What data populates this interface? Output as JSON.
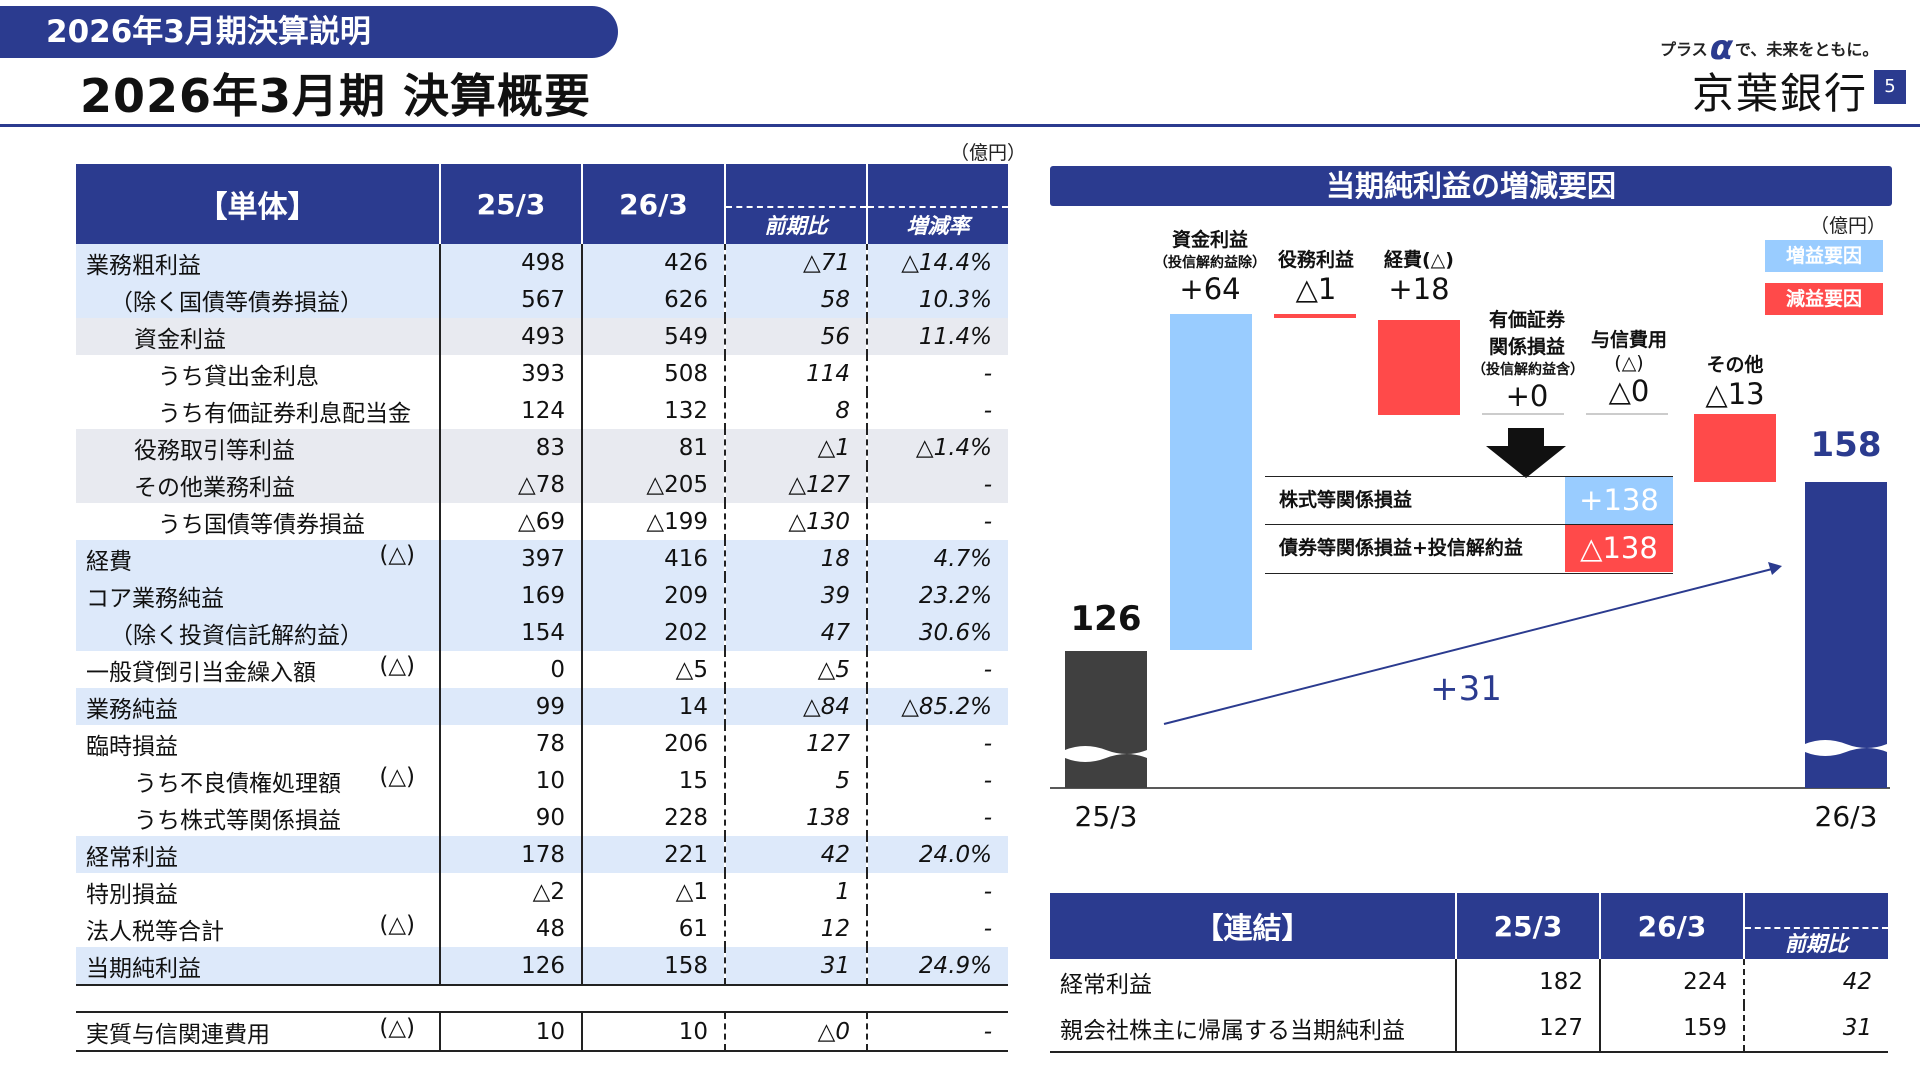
{
  "header": {
    "section_label": "2026年3月期決算説明",
    "page_title": "2026年3月期 決算概要",
    "slogan_pre": "プラス",
    "slogan_post": "で、未来をともに。",
    "bank_name": "京葉銀行",
    "page_number": "5"
  },
  "unit_label": "（億円）",
  "main_table": {
    "headers": {
      "label": "【単体】",
      "col1": "25/3",
      "col2": "26/3",
      "col3": "前期比",
      "col4": "増減率"
    },
    "rows": [
      {
        "label": "業務粗利益",
        "suffix": "",
        "v25": "498",
        "v26": "426",
        "diff": "△71",
        "rate": "△14.4%"
      },
      {
        "label": "（除く国債等債券損益）",
        "suffix": "",
        "v25": "567",
        "v26": "626",
        "diff": "58",
        "rate": "10.3%"
      },
      {
        "label": "資金利益",
        "suffix": "",
        "v25": "493",
        "v26": "549",
        "diff": "56",
        "rate": "11.4%"
      },
      {
        "label": "うち貸出金利息",
        "suffix": "",
        "v25": "393",
        "v26": "508",
        "diff": "114",
        "rate": "-"
      },
      {
        "label": "うち有価証券利息配当金",
        "suffix": "",
        "v25": "124",
        "v26": "132",
        "diff": "8",
        "rate": "-"
      },
      {
        "label": "役務取引等利益",
        "suffix": "",
        "v25": "83",
        "v26": "81",
        "diff": "△1",
        "rate": "△1.4%"
      },
      {
        "label": "その他業務利益",
        "suffix": "",
        "v25": "△78",
        "v26": "△205",
        "diff": "△127",
        "rate": "-"
      },
      {
        "label": "うち国債等債券損益",
        "suffix": "",
        "v25": "△69",
        "v26": "△199",
        "diff": "△130",
        "rate": "-"
      },
      {
        "label": "経費",
        "suffix": "(△)",
        "v25": "397",
        "v26": "416",
        "diff": "18",
        "rate": "4.7%"
      },
      {
        "label": "コア業務純益",
        "suffix": "",
        "v25": "169",
        "v26": "209",
        "diff": "39",
        "rate": "23.2%"
      },
      {
        "label": "（除く投資信託解約益）",
        "suffix": "",
        "v25": "154",
        "v26": "202",
        "diff": "47",
        "rate": "30.6%"
      },
      {
        "label": "一般貸倒引当金繰入額",
        "suffix": "(△)",
        "v25": "0",
        "v26": "△5",
        "diff": "△5",
        "rate": "-"
      },
      {
        "label": "業務純益",
        "suffix": "",
        "v25": "99",
        "v26": "14",
        "diff": "△84",
        "rate": "△85.2%"
      },
      {
        "label": "臨時損益",
        "suffix": "",
        "v25": "78",
        "v26": "206",
        "diff": "127",
        "rate": "-"
      },
      {
        "label": "うち不良債権処理額",
        "suffix": "(△)",
        "v25": "10",
        "v26": "15",
        "diff": "5",
        "rate": "-"
      },
      {
        "label": "うち株式等関係損益",
        "suffix": "",
        "v25": "90",
        "v26": "228",
        "diff": "138",
        "rate": "-"
      },
      {
        "label": "経常利益",
        "suffix": "",
        "v25": "178",
        "v26": "221",
        "diff": "42",
        "rate": "24.0%"
      },
      {
        "label": "特別損益",
        "suffix": "",
        "v25": "△2",
        "v26": "△1",
        "diff": "1",
        "rate": "-"
      },
      {
        "label": "法人税等合計",
        "suffix": "(△)",
        "v25": "48",
        "v26": "61",
        "diff": "12",
        "rate": "-"
      },
      {
        "label": "当期純利益",
        "suffix": "",
        "v25": "126",
        "v26": "158",
        "diff": "31",
        "rate": "24.9%"
      }
    ],
    "extra_row": {
      "label": "実質与信関連費用",
      "suffix": "(△)",
      "v25": "10",
      "v26": "10",
      "diff": "△0",
      "rate": "-"
    }
  },
  "chart": {
    "title": "当期純利益の増減要因",
    "unit": "（億円）",
    "legend_increase": "増益要因",
    "legend_decrease": "減益要因",
    "colors": {
      "increase": "#99ccff",
      "decrease": "#ff4a4a",
      "start": "#404040",
      "end": "#2b3b8f",
      "brand": "#2b3b8f"
    },
    "start": {
      "label": "25/3",
      "value": "126"
    },
    "end": {
      "label": "26/3",
      "value": "158"
    },
    "factors": [
      {
        "name": "資金利益",
        "note": "（投信解約益除）",
        "value_text": "+64",
        "type": "increase"
      },
      {
        "name": "役務利益",
        "note": "",
        "value_text": "△1",
        "type": "decrease"
      },
      {
        "name": "経費(△)",
        "note": "",
        "value_text": "+18",
        "type": "decrease"
      },
      {
        "name_lines": [
          "有価証券",
          "関係損益"
        ],
        "note": "（投信解約益含）",
        "value_text": "+0",
        "type": "none"
      },
      {
        "name_lines": [
          "与信費用",
          "(△)"
        ],
        "note": "",
        "value_text": "△0",
        "type": "none"
      },
      {
        "name": "その他",
        "note": "",
        "value_text": "△13",
        "type": "decrease"
      }
    ],
    "breakdown": [
      {
        "label": "株式等関係損益",
        "value": "+138"
      },
      {
        "label": "債券等関係損益+投信解約益",
        "value": "△138"
      }
    ],
    "change_label": "+31"
  },
  "consolidated": {
    "headers": {
      "label": "【連結】",
      "col1": "25/3",
      "col2": "26/3",
      "col3": "前期比"
    },
    "rows": [
      {
        "label": "経常利益",
        "v25": "182",
        "v26": "224",
        "diff": "42"
      },
      {
        "label": "親会社株主に帰属する当期純利益",
        "v25": "127",
        "v26": "159",
        "diff": "31"
      }
    ]
  }
}
